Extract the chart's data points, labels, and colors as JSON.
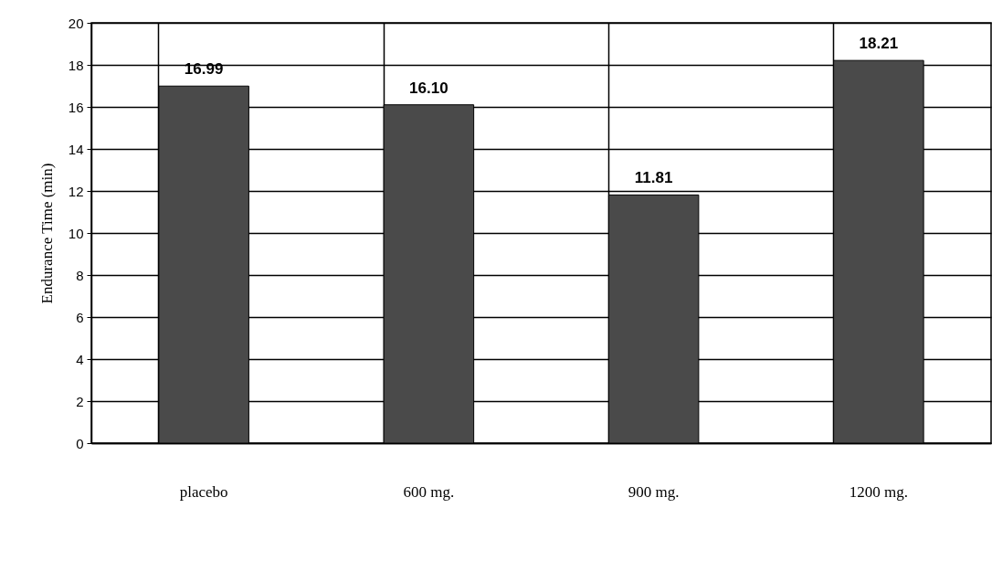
{
  "chart_data": {
    "type": "bar",
    "ylabel": "Endurance Time (min)",
    "categories": [
      "placebo",
      "600 mg.",
      "900 mg.",
      "1200 mg."
    ],
    "values": [
      16.99,
      16.1,
      11.81,
      18.21
    ],
    "value_labels": [
      "16.99",
      "16.10",
      "11.81",
      "18.21"
    ],
    "color": "#4a4a4a",
    "ylim": [
      0,
      20
    ],
    "yticks": [
      0,
      2,
      4,
      6,
      8,
      10,
      12,
      14,
      16,
      18,
      20
    ],
    "grid": true
  }
}
